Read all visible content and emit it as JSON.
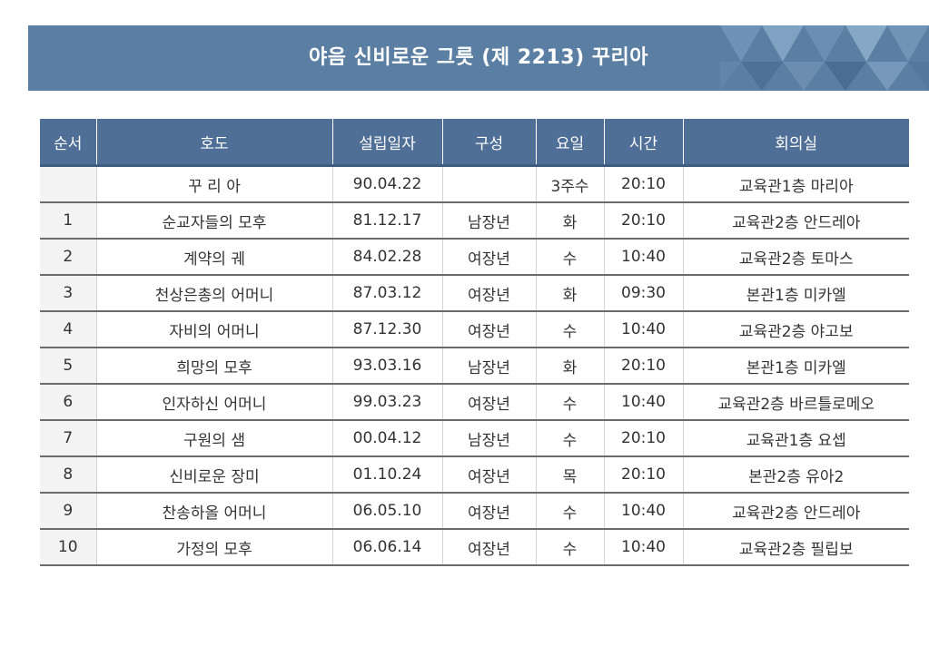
{
  "header": {
    "title": "야음 신비로운 그릇 (제 2213) 꾸리아"
  },
  "colors": {
    "banner": "#5a7fa3",
    "table_header": "#4f6f97"
  },
  "table": {
    "columns": [
      "순서",
      "호도",
      "설립일자",
      "구성",
      "요일",
      "시간",
      "회의실"
    ],
    "rows": [
      [
        "",
        "꾸 리 아",
        "90.04.22",
        "",
        "3주수",
        "20:10",
        "교육관1층 마리아"
      ],
      [
        "1",
        "순교자들의 모후",
        "81.12.17",
        "남장년",
        "화",
        "20:10",
        "교육관2층 안드레아"
      ],
      [
        "2",
        "계약의 궤",
        "84.02.28",
        "여장년",
        "수",
        "10:40",
        "교육관2층 토마스"
      ],
      [
        "3",
        "천상은총의 어머니",
        "87.03.12",
        "여장년",
        "화",
        "09:30",
        "본관1층 미카엘"
      ],
      [
        "4",
        "자비의 어머니",
        "87.12.30",
        "여장년",
        "수",
        "10:40",
        "교육관2층 야고보"
      ],
      [
        "5",
        "희망의 모후",
        "93.03.16",
        "남장년",
        "화",
        "20:10",
        "본관1층 미카엘"
      ],
      [
        "6",
        "인자하신 어머니",
        "99.03.23",
        "여장년",
        "수",
        "10:40",
        "교육관2층 바르틀로메오"
      ],
      [
        "7",
        "구원의 샘",
        "00.04.12",
        "남장년",
        "수",
        "20:10",
        "교육관1층 요셉"
      ],
      [
        "8",
        "신비로운 장미",
        "01.10.24",
        "여장년",
        "목",
        "20:10",
        "본관2층 유아2"
      ],
      [
        "9",
        "찬송하올 어머니",
        "06.05.10",
        "여장년",
        "수",
        "10:40",
        "교육관2층 안드레아"
      ],
      [
        "10",
        "가정의 모후",
        "06.06.14",
        "여장년",
        "수",
        "10:40",
        "교육관2층 필립보"
      ]
    ]
  }
}
